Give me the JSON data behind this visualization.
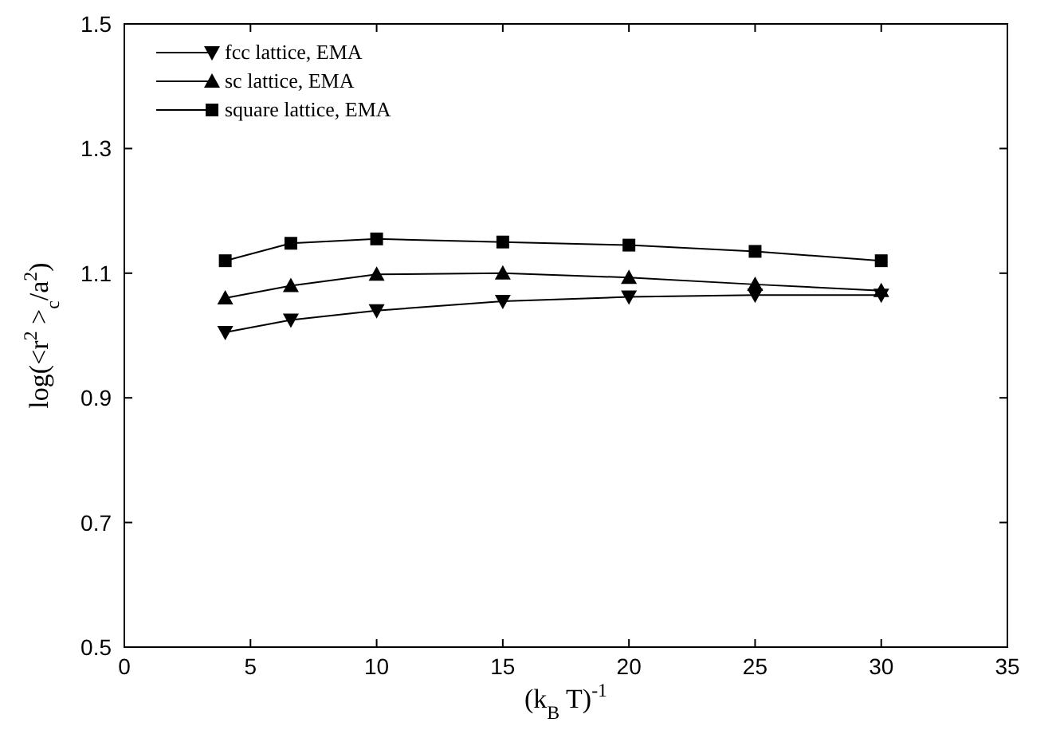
{
  "chart_data": {
    "type": "line",
    "xlabel": "(k$_{B}$ T)$^{-1}$",
    "ylabel": "log(<r$^{2}$ >$_{c}$/a$^{2}$)",
    "x": [
      4,
      6.6,
      10,
      15,
      20,
      25,
      30
    ],
    "series": [
      {
        "name": "fcc lattice, EMA",
        "color": "#000000",
        "marker": "triangle-down",
        "values": [
          1.005,
          1.025,
          1.04,
          1.055,
          1.062,
          1.065,
          1.065
        ]
      },
      {
        "name": "sc lattice, EMA",
        "color": "#000000",
        "marker": "triangle",
        "values": [
          1.06,
          1.08,
          1.098,
          1.1,
          1.093,
          1.082,
          1.072
        ]
      },
      {
        "name": "square lattice, EMA",
        "color": "#000000",
        "marker": "square",
        "values": [
          1.12,
          1.148,
          1.155,
          1.15,
          1.145,
          1.135,
          1.12
        ]
      }
    ],
    "xlim": [
      0,
      35
    ],
    "xticks": [
      0,
      5,
      10,
      15,
      20,
      25,
      30,
      35
    ],
    "ylim": [
      0.5,
      1.5
    ],
    "yticks": [
      0.5,
      0.7,
      0.9,
      1.1,
      1.3,
      1.5
    ],
    "grid": false,
    "legend": "top left",
    "line_style": "solid"
  }
}
